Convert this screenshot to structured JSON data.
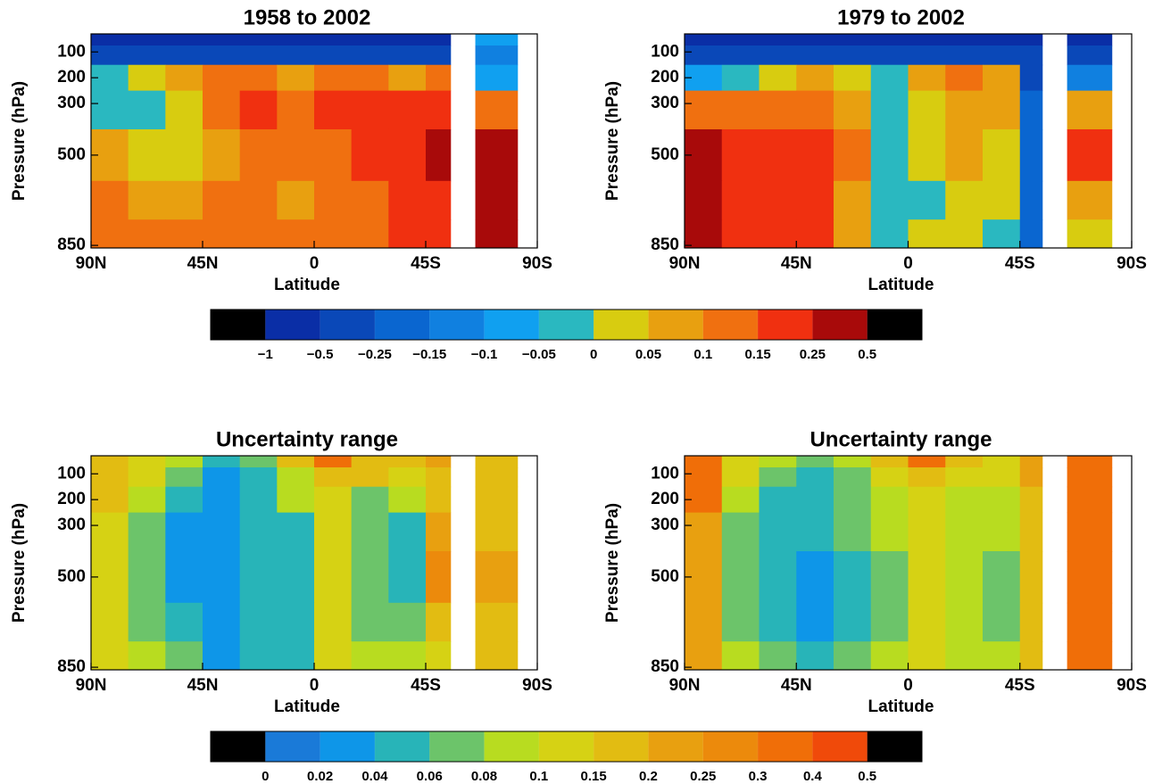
{
  "chart_data": [
    {
      "type": "contour",
      "levels": [
        -1,
        -0.5,
        -0.25,
        -0.15,
        -0.1,
        -0.05,
        0,
        0.05,
        0.1,
        0.15,
        0.25,
        0.5
      ],
      "colors": [
        "#000000",
        "#0a2ea6",
        "#0a48b8",
        "#0a66d0",
        "#1080e0",
        "#10a0f0",
        "#2ab8c0",
        "#d8cc10",
        "#e8a010",
        "#f07010",
        "#f03010",
        "#a80a0a",
        "#000000"
      ],
      "panels": [
        {
          "title": "1958 to 2002",
          "xlabel": "Latitude",
          "ylabel": "Pressure (hPa)",
          "xlim": [
            90,
            -90
          ],
          "ylim": [
            860,
            30
          ],
          "xticks": [
            {
              "value": 90,
              "label": "90N"
            },
            {
              "value": 45,
              "label": "45N"
            },
            0,
            {
              "value": -45,
              "label": "45S"
            },
            {
              "value": -90,
              "label": "90S"
            }
          ],
          "yticks": [
            100,
            200,
            300,
            500,
            850
          ],
          "x_bins": [
            90,
            75,
            60,
            45,
            30,
            15,
            0,
            -15,
            -30,
            -45,
            -55,
            -65,
            -82
          ],
          "y_bins": [
            30,
            75,
            150,
            250,
            400,
            600,
            750,
            860
          ],
          "values": [
            [
              -0.7,
              -0.7,
              -0.7,
              -0.7,
              -0.7,
              -0.7,
              -0.7,
              -0.7,
              -0.7,
              -0.7,
              null,
              -0.1
            ],
            [
              -0.3,
              -0.3,
              -0.3,
              -0.3,
              -0.3,
              -0.3,
              -0.3,
              -0.3,
              -0.3,
              -0.3,
              null,
              -0.12
            ],
            [
              -0.02,
              0.03,
              0.07,
              0.12,
              0.12,
              0.07,
              0.12,
              0.12,
              0.07,
              0.12,
              null,
              -0.1
            ],
            [
              -0.02,
              -0.02,
              0.03,
              0.12,
              0.2,
              0.12,
              0.2,
              0.2,
              0.2,
              0.2,
              null,
              0.12
            ],
            [
              0.07,
              0.03,
              0.03,
              0.07,
              0.12,
              0.12,
              0.12,
              0.2,
              0.2,
              0.35,
              null,
              0.35
            ],
            [
              0.12,
              0.07,
              0.07,
              0.12,
              0.12,
              0.07,
              0.12,
              0.12,
              0.2,
              0.2,
              null,
              0.35
            ],
            [
              0.12,
              0.12,
              0.12,
              0.12,
              0.12,
              0.12,
              0.12,
              0.12,
              0.2,
              0.2,
              null,
              0.35
            ]
          ]
        },
        {
          "title": "1979 to 2002",
          "xlabel": "Latitude",
          "ylabel": "Pressure (hPa)",
          "xlim": [
            90,
            -90
          ],
          "ylim": [
            860,
            30
          ],
          "xticks": [
            {
              "value": 90,
              "label": "90N"
            },
            {
              "value": 45,
              "label": "45N"
            },
            0,
            {
              "value": -45,
              "label": "45S"
            },
            {
              "value": -90,
              "label": "90S"
            }
          ],
          "yticks": [
            100,
            200,
            300,
            500,
            850
          ],
          "x_bins": [
            90,
            75,
            60,
            45,
            30,
            15,
            0,
            -15,
            -30,
            -45,
            -54,
            -64,
            -82
          ],
          "y_bins": [
            30,
            75,
            150,
            250,
            400,
            600,
            750,
            860
          ],
          "values": [
            [
              -0.7,
              -0.7,
              -0.7,
              -0.7,
              -0.7,
              -0.7,
              -0.7,
              -0.7,
              -0.7,
              -0.7,
              null,
              -0.7
            ],
            [
              -0.3,
              -0.3,
              -0.3,
              -0.3,
              -0.3,
              -0.3,
              -0.3,
              -0.3,
              -0.3,
              -0.3,
              null,
              -0.3
            ],
            [
              -0.07,
              -0.02,
              0.03,
              0.07,
              0.03,
              -0.02,
              0.07,
              0.12,
              0.07,
              -0.3,
              null,
              -0.12
            ],
            [
              0.12,
              0.12,
              0.12,
              0.12,
              0.07,
              -0.02,
              0.03,
              0.07,
              0.07,
              -0.2,
              null,
              0.07
            ],
            [
              0.35,
              0.2,
              0.2,
              0.2,
              0.12,
              -0.02,
              0.03,
              0.07,
              0.03,
              -0.2,
              null,
              0.2
            ],
            [
              0.35,
              0.2,
              0.2,
              0.2,
              0.07,
              -0.02,
              -0.02,
              0.03,
              0.03,
              -0.2,
              null,
              0.07
            ],
            [
              0.35,
              0.2,
              0.2,
              0.2,
              0.07,
              -0.02,
              0.03,
              0.03,
              -0.02,
              -0.2,
              null,
              0.03
            ]
          ]
        }
      ]
    },
    {
      "type": "contour",
      "levels": [
        0,
        0.02,
        0.04,
        0.06,
        0.08,
        0.1,
        0.15,
        0.2,
        0.25,
        0.3,
        0.4,
        0.5
      ],
      "colors": [
        "#000000",
        "#1a7ad8",
        "#0e96e8",
        "#28b4b8",
        "#6cc46a",
        "#b8dc20",
        "#d6d214",
        "#e2bc12",
        "#e8a010",
        "#ec8a0c",
        "#f06e08",
        "#f04a0a",
        "#000000"
      ],
      "panels": [
        {
          "title": "Uncertainty range",
          "xlabel": "Latitude",
          "ylabel": "Pressure (hPa)",
          "xlim": [
            90,
            -90
          ],
          "ylim": [
            860,
            30
          ],
          "xticks": [
            {
              "value": 90,
              "label": "90N"
            },
            {
              "value": 45,
              "label": "45N"
            },
            0,
            {
              "value": -45,
              "label": "45S"
            },
            {
              "value": -90,
              "label": "90S"
            }
          ],
          "yticks": [
            100,
            200,
            300,
            500,
            850
          ],
          "x_bins": [
            90,
            75,
            60,
            45,
            30,
            15,
            0,
            -15,
            -30,
            -45,
            -55,
            -65,
            -82
          ],
          "y_bins": [
            30,
            75,
            150,
            250,
            400,
            600,
            750,
            860
          ],
          "values": [
            [
              0.17,
              0.12,
              0.09,
              0.05,
              0.07,
              0.17,
              0.3,
              0.17,
              0.17,
              0.22,
              null,
              0.17
            ],
            [
              0.17,
              0.12,
              0.07,
              0.03,
              0.05,
              0.09,
              0.17,
              0.17,
              0.12,
              0.17,
              null,
              0.17
            ],
            [
              0.17,
              0.09,
              0.05,
              0.03,
              0.05,
              0.09,
              0.12,
              0.07,
              0.09,
              0.17,
              null,
              0.17
            ],
            [
              0.12,
              0.07,
              0.03,
              0.03,
              0.05,
              0.05,
              0.12,
              0.07,
              0.05,
              0.22,
              null,
              0.17
            ],
            [
              0.12,
              0.07,
              0.03,
              0.03,
              0.05,
              0.05,
              0.12,
              0.07,
              0.05,
              0.27,
              null,
              0.22
            ],
            [
              0.12,
              0.07,
              0.05,
              0.03,
              0.05,
              0.05,
              0.12,
              0.07,
              0.07,
              0.17,
              null,
              0.17
            ],
            [
              0.12,
              0.09,
              0.07,
              0.03,
              0.05,
              0.05,
              0.12,
              0.09,
              0.09,
              0.12,
              null,
              0.17
            ]
          ]
        },
        {
          "title": "Uncertainty range",
          "xlabel": "Latitude",
          "ylabel": "Pressure (hPa)",
          "xlim": [
            90,
            -90
          ],
          "ylim": [
            860,
            30
          ],
          "xticks": [
            {
              "value": 90,
              "label": "90N"
            },
            {
              "value": 45,
              "label": "45N"
            },
            0,
            {
              "value": -45,
              "label": "45S"
            },
            {
              "value": -90,
              "label": "90S"
            }
          ],
          "yticks": [
            100,
            200,
            300,
            500,
            850
          ],
          "x_bins": [
            90,
            75,
            60,
            45,
            30,
            15,
            0,
            -15,
            -30,
            -45,
            -54,
            -64,
            -82
          ],
          "y_bins": [
            30,
            75,
            150,
            250,
            400,
            600,
            750,
            860
          ],
          "values": [
            [
              0.35,
              0.12,
              0.09,
              0.07,
              0.09,
              0.17,
              0.35,
              0.17,
              0.12,
              0.22,
              null,
              0.35
            ],
            [
              0.3,
              0.12,
              0.07,
              0.05,
              0.07,
              0.12,
              0.17,
              0.12,
              0.12,
              0.22,
              null,
              0.35
            ],
            [
              0.3,
              0.09,
              0.05,
              0.05,
              0.07,
              0.09,
              0.12,
              0.09,
              0.09,
              0.17,
              null,
              0.35
            ],
            [
              0.22,
              0.07,
              0.05,
              0.05,
              0.07,
              0.09,
              0.12,
              0.09,
              0.09,
              0.17,
              null,
              0.3
            ],
            [
              0.22,
              0.07,
              0.05,
              0.03,
              0.05,
              0.07,
              0.12,
              0.09,
              0.07,
              0.17,
              null,
              0.35
            ],
            [
              0.22,
              0.07,
              0.05,
              0.03,
              0.05,
              0.07,
              0.12,
              0.09,
              0.07,
              0.17,
              null,
              0.3
            ],
            [
              0.22,
              0.09,
              0.07,
              0.05,
              0.07,
              0.09,
              0.12,
              0.09,
              0.09,
              0.17,
              null,
              0.3
            ]
          ]
        }
      ]
    }
  ]
}
